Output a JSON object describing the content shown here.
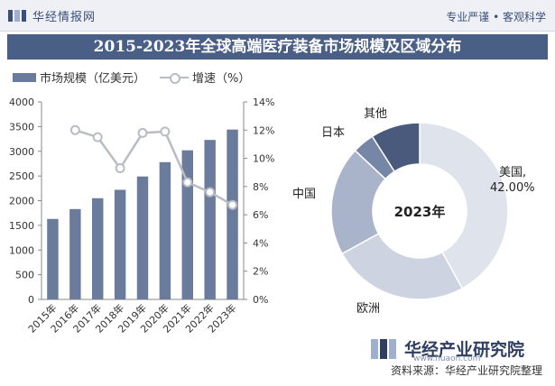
{
  "header": {
    "brand_name": "华经情报网",
    "tagline": "专业严谨 • 客观科学"
  },
  "title": "2015-2023年全球高端医疗装备市场规模及区域分布",
  "legend": {
    "bar_label": "市场规模（亿美元）",
    "line_label": "增速（%）"
  },
  "footer": {
    "brand_name": "华经产业研究院",
    "brand_url": "www.huaon.com",
    "source": "资料来源：华经产业研究院整理"
  },
  "colors": {
    "bar": "#6b7b9c",
    "line": "#b8bcc4",
    "title_bg": "#4a5f86"
  },
  "chart_data": [
    {
      "type": "bar",
      "categories": [
        "2015年",
        "2016年",
        "2017年",
        "2018年",
        "2019年",
        "2020年",
        "2021年",
        "2022年",
        "2023年"
      ],
      "series": [
        {
          "name": "市场规模（亿美元）",
          "axis": "left",
          "values": [
            1630,
            1830,
            2050,
            2220,
            2490,
            2780,
            3020,
            3230,
            3440
          ]
        },
        {
          "name": "增速（%）",
          "type": "line",
          "axis": "right",
          "values": [
            null,
            12.0,
            11.5,
            9.3,
            11.8,
            11.9,
            8.3,
            7.6,
            6.7
          ]
        }
      ],
      "ylim_left": [
        0,
        4000
      ],
      "yticks_left": [
        "0",
        "500",
        "1000",
        "1500",
        "2000",
        "2500",
        "3000",
        "3500",
        "4000"
      ],
      "ylim_right": [
        0,
        14
      ],
      "yticks_right": [
        "0%",
        "2%",
        "4%",
        "6%",
        "8%",
        "10%",
        "12%",
        "14%"
      ],
      "grid": false,
      "legend_position": "top-left"
    },
    {
      "type": "pie",
      "donut": true,
      "center_label": "2023年",
      "slices": [
        {
          "label": "美国",
          "value": 42.0,
          "value_label": "42.00%",
          "color": "#dfe3ec"
        },
        {
          "label": "欧洲",
          "value": 25.0,
          "color": "#cdd3e0"
        },
        {
          "label": "中国",
          "value": 20.0,
          "color": "#a9b4ca"
        },
        {
          "label": "日本",
          "value": 4.0,
          "color": "#7686a6"
        },
        {
          "label": "其他",
          "value": 9.0,
          "color": "#4a5a7c"
        }
      ]
    }
  ]
}
